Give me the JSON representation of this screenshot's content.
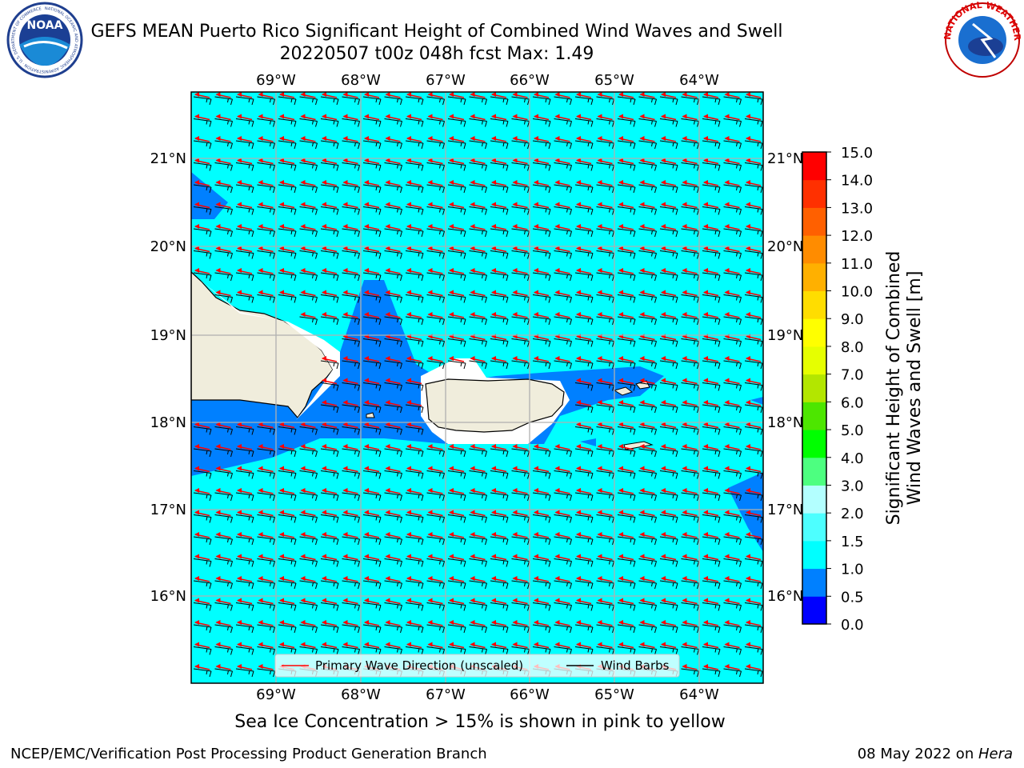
{
  "title": {
    "line1": "GEFS MEAN Puerto Rico Significant Height of Combined Wind Waves and Swell",
    "line2": "20220507 t00z 048h fcst   Max: 1.49"
  },
  "logos": {
    "left": "NOAA",
    "left_ring": "NATIONAL OCEANIC AND ATMOSPHERIC ADMINISTRATION · U.S. DEPARTMENT OF COMMERCE",
    "right_ring": "NATIONAL WEATHER SERVICE"
  },
  "map": {
    "lon_labels": [
      "69°W",
      "68°W",
      "67°W",
      "66°W",
      "65°W",
      "64°W"
    ],
    "lat_labels": [
      "21°N",
      "20°N",
      "19°N",
      "18°N",
      "17°N",
      "16°N"
    ],
    "colors": {
      "ocean_light": "#00ffff",
      "ocean_mid": "#0080ff",
      "ocean_deep": "#0000ff",
      "land": "#f0eddc",
      "grid": "#b0b0b0",
      "wave_arrow": "#ff0000",
      "wind_barb": "#000000"
    }
  },
  "legend": {
    "wave_label": "Primary Wave Direction (unscaled)",
    "barb_label": "Wind Barbs"
  },
  "colorbar": {
    "label_line1": "Significant Height of Combined",
    "label_line2": "Wind Waves and Swell [m]",
    "ticks": [
      "0.0",
      "0.5",
      "1.0",
      "1.5",
      "2.0",
      "3.0",
      "4.0",
      "5.0",
      "6.0",
      "7.0",
      "8.0",
      "9.0",
      "10.0",
      "11.0",
      "12.0",
      "13.0",
      "14.0",
      "15.0"
    ],
    "colors": [
      "#0000ff",
      "#0080ff",
      "#00ffff",
      "#4dffff",
      "#b3ffff",
      "#4dff80",
      "#00ff00",
      "#4de600",
      "#b3e600",
      "#e6ff00",
      "#ffff00",
      "#ffdd00",
      "#ffb000",
      "#ff8c00",
      "#ff6000",
      "#ff3000",
      "#ff0000"
    ]
  },
  "subcaption": "Sea Ice Concentration > 15% is shown in pink to yellow",
  "footer": {
    "left": "NCEP/EMC/Verification Post Processing Product Generation Branch",
    "right_date": "08 May 2022 on ",
    "right_machine": "Hera"
  }
}
